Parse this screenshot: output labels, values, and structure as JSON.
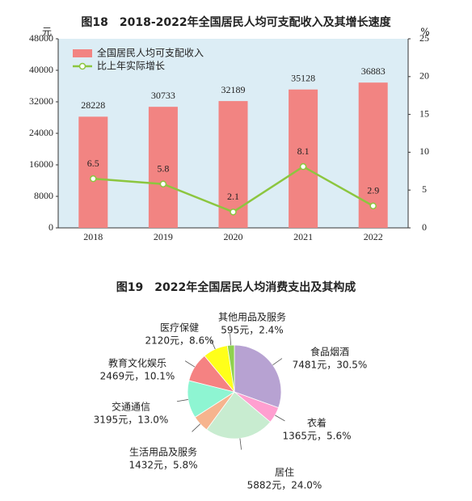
{
  "chart_data": [
    {
      "type": "bar-line",
      "title": "图18　2018-2022年全国居民人均可支配收入及其增长速度",
      "ylabel": "元",
      "y2label": "%",
      "categories": [
        "2018",
        "2019",
        "2020",
        "2021",
        "2022"
      ],
      "series": [
        {
          "name": "全国居民人均可支配收入",
          "type": "bar",
          "color": "#f28482",
          "values": [
            28228,
            30733,
            32189,
            35128,
            36883
          ]
        },
        {
          "name": "比上年实际增长",
          "type": "line",
          "axis": "y2",
          "color": "#8cc63f",
          "values": [
            6.5,
            5.8,
            2.1,
            8.1,
            2.9
          ]
        }
      ],
      "ylim": [
        0,
        48000
      ],
      "yticks": [
        0,
        8000,
        16000,
        24000,
        32000,
        40000,
        48000
      ],
      "y2lim": [
        0,
        25
      ],
      "y2ticks": [
        0,
        5,
        10,
        15,
        20,
        25
      ],
      "legend": "top-left",
      "background": "#dcedf5"
    },
    {
      "type": "pie",
      "title": "图19　2022年全国居民人均消费支出及其构成",
      "categories": [
        "食品烟酒",
        "衣着",
        "居住",
        "生活用品及服务",
        "交通通信",
        "教育文化娱乐",
        "医疗保健",
        "其他用品及服务"
      ],
      "values": [
        30.5,
        5.6,
        24.0,
        5.8,
        13.0,
        10.1,
        8.6,
        2.4
      ],
      "value_labels": [
        "7481元，30.5%",
        "1365元，5.6%",
        "5882元，24.0%",
        "1432元，5.8%",
        "3195元，13.0%",
        "2469元，10.1%",
        "2120元，8.6%",
        "595元，2.4%"
      ],
      "colors": [
        "#b7a2d2",
        "#ff9fd0",
        "#c8ecd0",
        "#f6b48e",
        "#8ef5d2",
        "#f58282",
        "#ffff1a",
        "#8fd14f"
      ]
    }
  ]
}
